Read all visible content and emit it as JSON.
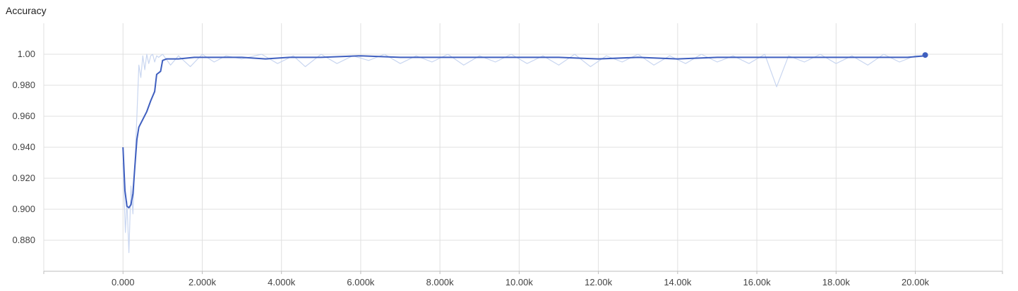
{
  "chart_data": {
    "type": "line",
    "title": "Accuracy",
    "xlabel": "",
    "ylabel": "",
    "xlim": [
      -2000,
      22200
    ],
    "ylim": [
      0.86,
      1.02
    ],
    "x_ticks": [
      {
        "value": 0,
        "label": "0.000"
      },
      {
        "value": 2000,
        "label": "2.000k"
      },
      {
        "value": 4000,
        "label": "4.000k"
      },
      {
        "value": 6000,
        "label": "6.000k"
      },
      {
        "value": 8000,
        "label": "8.000k"
      },
      {
        "value": 10000,
        "label": "10.00k"
      },
      {
        "value": 12000,
        "label": "12.00k"
      },
      {
        "value": 14000,
        "label": "14.00k"
      },
      {
        "value": 16000,
        "label": "16.00k"
      },
      {
        "value": 18000,
        "label": "18.00k"
      },
      {
        "value": 20000,
        "label": "20.00k"
      }
    ],
    "y_ticks": [
      {
        "value": 0.88,
        "label": "0.880"
      },
      {
        "value": 0.9,
        "label": "0.900"
      },
      {
        "value": 0.92,
        "label": "0.920"
      },
      {
        "value": 0.94,
        "label": "0.940"
      },
      {
        "value": 0.96,
        "label": "0.960"
      },
      {
        "value": 0.98,
        "label": "0.980"
      },
      {
        "value": 1.0,
        "label": "1.00"
      }
    ],
    "grid": true,
    "series": [
      {
        "style": "smoothed",
        "color": "#3f5fbf",
        "points": [
          [
            0,
            0.94
          ],
          [
            50,
            0.912
          ],
          [
            100,
            0.902
          ],
          [
            150,
            0.901
          ],
          [
            200,
            0.903
          ],
          [
            250,
            0.91
          ],
          [
            300,
            0.928
          ],
          [
            350,
            0.945
          ],
          [
            400,
            0.953
          ],
          [
            500,
            0.958
          ],
          [
            600,
            0.963
          ],
          [
            700,
            0.97
          ],
          [
            800,
            0.976
          ],
          [
            850,
            0.987
          ],
          [
            950,
            0.989
          ],
          [
            1000,
            0.996
          ],
          [
            1100,
            0.997
          ],
          [
            1400,
            0.997
          ],
          [
            1800,
            0.998
          ],
          [
            2400,
            0.998
          ],
          [
            3000,
            0.998
          ],
          [
            3600,
            0.997
          ],
          [
            4200,
            0.998
          ],
          [
            5000,
            0.998
          ],
          [
            6000,
            0.999
          ],
          [
            7000,
            0.998
          ],
          [
            8000,
            0.998
          ],
          [
            9000,
            0.998
          ],
          [
            10000,
            0.998
          ],
          [
            11000,
            0.998
          ],
          [
            12000,
            0.997
          ],
          [
            13000,
            0.998
          ],
          [
            14000,
            0.997
          ],
          [
            15000,
            0.998
          ],
          [
            16000,
            0.998
          ],
          [
            17000,
            0.998
          ],
          [
            18000,
            0.998
          ],
          [
            19000,
            0.998
          ],
          [
            19800,
            0.998
          ],
          [
            20250,
            0.999
          ]
        ],
        "last_point": [
          20250,
          0.9995
        ]
      },
      {
        "style": "raw",
        "color": "#c9d6f0",
        "points": [
          [
            0,
            0.93
          ],
          [
            60,
            0.885
          ],
          [
            100,
            0.905
          ],
          [
            150,
            0.872
          ],
          [
            200,
            0.915
          ],
          [
            250,
            0.897
          ],
          [
            300,
            0.93
          ],
          [
            350,
            0.96
          ],
          [
            400,
            0.993
          ],
          [
            450,
            0.985
          ],
          [
            500,
            0.999
          ],
          [
            550,
            0.99
          ],
          [
            600,
            1.0
          ],
          [
            650,
            0.994
          ],
          [
            700,
            0.999
          ],
          [
            750,
            1.0
          ],
          [
            800,
            0.995
          ],
          [
            850,
            0.999
          ],
          [
            900,
            0.998
          ],
          [
            1000,
            1.0
          ],
          [
            1200,
            0.993
          ],
          [
            1400,
            0.999
          ],
          [
            1700,
            0.992
          ],
          [
            2000,
            1.0
          ],
          [
            2300,
            0.995
          ],
          [
            2600,
            0.999
          ],
          [
            3000,
            0.997
          ],
          [
            3500,
            1.0
          ],
          [
            3900,
            0.994
          ],
          [
            4300,
            0.999
          ],
          [
            4600,
            0.992
          ],
          [
            5000,
            1.0
          ],
          [
            5400,
            0.994
          ],
          [
            5800,
            0.999
          ],
          [
            6200,
            0.996
          ],
          [
            6600,
            1.0
          ],
          [
            7000,
            0.994
          ],
          [
            7400,
            0.999
          ],
          [
            7800,
            0.995
          ],
          [
            8200,
            1.0
          ],
          [
            8600,
            0.993
          ],
          [
            9000,
            0.999
          ],
          [
            9400,
            0.995
          ],
          [
            9800,
            1.0
          ],
          [
            10200,
            0.994
          ],
          [
            10600,
            0.999
          ],
          [
            11000,
            0.993
          ],
          [
            11400,
            1.0
          ],
          [
            11800,
            0.992
          ],
          [
            12200,
            0.999
          ],
          [
            12600,
            0.995
          ],
          [
            13000,
            1.0
          ],
          [
            13400,
            0.993
          ],
          [
            13800,
            0.999
          ],
          [
            14200,
            0.994
          ],
          [
            14600,
            1.0
          ],
          [
            15000,
            0.995
          ],
          [
            15400,
            0.999
          ],
          [
            15800,
            0.994
          ],
          [
            16200,
            1.0
          ],
          [
            16500,
            0.979
          ],
          [
            16800,
            0.999
          ],
          [
            17200,
            0.995
          ],
          [
            17600,
            1.0
          ],
          [
            18000,
            0.994
          ],
          [
            18400,
            0.999
          ],
          [
            18800,
            0.993
          ],
          [
            19200,
            1.0
          ],
          [
            19600,
            0.995
          ],
          [
            20000,
            0.999
          ],
          [
            20250,
            0.999
          ]
        ]
      }
    ]
  }
}
